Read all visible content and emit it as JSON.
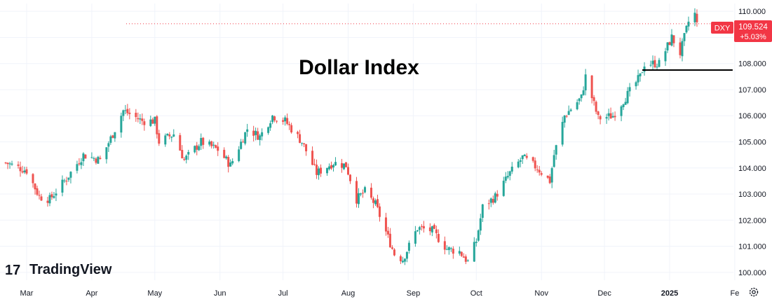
{
  "app": {
    "brand": "TradingView",
    "logo_mark": "17",
    "settings_icon": "gear-icon"
  },
  "chart_data": {
    "type": "candlestick",
    "title": "Dollar Index",
    "symbol": "DXY",
    "last_price": "109.524",
    "change_pct": "+5.03%",
    "price_scale": "right",
    "grid": true,
    "ylim": [
      99.7,
      110.3
    ],
    "y_ticks": [
      "100.000",
      "101.000",
      "102.000",
      "103.000",
      "104.000",
      "105.000",
      "106.000",
      "107.000",
      "108.000",
      "109.000",
      "110.000"
    ],
    "x_labels": [
      {
        "label": "Mar",
        "date": "2024-03-01",
        "bold": false
      },
      {
        "label": "Apr",
        "date": "2024-04-01",
        "bold": false
      },
      {
        "label": "May",
        "date": "2024-05-01",
        "bold": false
      },
      {
        "label": "Jun",
        "date": "2024-06-01",
        "bold": false
      },
      {
        "label": "Jul",
        "date": "2024-07-01",
        "bold": false
      },
      {
        "label": "Aug",
        "date": "2024-08-01",
        "bold": false
      },
      {
        "label": "Sep",
        "date": "2024-09-01",
        "bold": false
      },
      {
        "label": "Oct",
        "date": "2024-10-01",
        "bold": false
      },
      {
        "label": "Nov",
        "date": "2024-11-01",
        "bold": false
      },
      {
        "label": "Dec",
        "date": "2024-12-01",
        "bold": false
      },
      {
        "label": "2025",
        "date": "2025-01-01",
        "bold": true
      },
      {
        "label": "Fe",
        "date": "2025-02-01",
        "bold": false
      }
    ],
    "closes": [
      {
        "date": "2024-02-20",
        "close": 104.2
      },
      {
        "date": "2024-03-01",
        "close": 103.9
      },
      {
        "date": "2024-03-07",
        "close": 102.9
      },
      {
        "date": "2024-03-12",
        "close": 102.8
      },
      {
        "date": "2024-03-20",
        "close": 103.6
      },
      {
        "date": "2024-03-28",
        "close": 104.5
      },
      {
        "date": "2024-04-05",
        "close": 104.3
      },
      {
        "date": "2024-04-11",
        "close": 105.3
      },
      {
        "date": "2024-04-16",
        "close": 106.2
      },
      {
        "date": "2024-04-25",
        "close": 105.8
      },
      {
        "date": "2024-05-01",
        "close": 105.8
      },
      {
        "date": "2024-05-03",
        "close": 105.0
      },
      {
        "date": "2024-05-10",
        "close": 105.3
      },
      {
        "date": "2024-05-15",
        "close": 104.3
      },
      {
        "date": "2024-05-23",
        "close": 105.0
      },
      {
        "date": "2024-05-31",
        "close": 104.7
      },
      {
        "date": "2024-06-06",
        "close": 104.1
      },
      {
        "date": "2024-06-14",
        "close": 105.5
      },
      {
        "date": "2024-06-20",
        "close": 105.2
      },
      {
        "date": "2024-06-26",
        "close": 106.0
      },
      {
        "date": "2024-07-02",
        "close": 105.8
      },
      {
        "date": "2024-07-10",
        "close": 105.0
      },
      {
        "date": "2024-07-17",
        "close": 103.8
      },
      {
        "date": "2024-07-25",
        "close": 104.2
      },
      {
        "date": "2024-07-31",
        "close": 104.1
      },
      {
        "date": "2024-08-05",
        "close": 102.8
      },
      {
        "date": "2024-08-09",
        "close": 103.1
      },
      {
        "date": "2024-08-14",
        "close": 102.6
      },
      {
        "date": "2024-08-23",
        "close": 100.7
      },
      {
        "date": "2024-08-27",
        "close": 100.5
      },
      {
        "date": "2024-09-03",
        "close": 101.7
      },
      {
        "date": "2024-09-10",
        "close": 101.6
      },
      {
        "date": "2024-09-17",
        "close": 100.9
      },
      {
        "date": "2024-09-23",
        "close": 100.8
      },
      {
        "date": "2024-09-27",
        "close": 100.4
      },
      {
        "date": "2024-10-01",
        "close": 101.2
      },
      {
        "date": "2024-10-04",
        "close": 102.5
      },
      {
        "date": "2024-10-10",
        "close": 102.9
      },
      {
        "date": "2024-10-17",
        "close": 103.8
      },
      {
        "date": "2024-10-23",
        "close": 104.4
      },
      {
        "date": "2024-10-30",
        "close": 104.0
      },
      {
        "date": "2024-11-05",
        "close": 103.5
      },
      {
        "date": "2024-11-07",
        "close": 104.5
      },
      {
        "date": "2024-11-12",
        "close": 106.0
      },
      {
        "date": "2024-11-20",
        "close": 106.7
      },
      {
        "date": "2024-11-22",
        "close": 107.5
      },
      {
        "date": "2024-11-28",
        "close": 105.9
      },
      {
        "date": "2024-12-05",
        "close": 106.0
      },
      {
        "date": "2024-12-11",
        "close": 106.7
      },
      {
        "date": "2024-12-18",
        "close": 107.5
      },
      {
        "date": "2024-12-20",
        "close": 108.0
      },
      {
        "date": "2024-12-27",
        "close": 108.0
      },
      {
        "date": "2025-01-02",
        "close": 109.0
      },
      {
        "date": "2025-01-06",
        "close": 108.4
      },
      {
        "date": "2025-01-10",
        "close": 109.6
      },
      {
        "date": "2025-01-13",
        "close": 109.9
      },
      {
        "date": "2025-01-14",
        "close": 109.5
      }
    ],
    "annotations": [
      {
        "type": "horizontal-line",
        "style": "solid",
        "color": "#000000",
        "y": 107.75,
        "from_date": "2024-12-19",
        "to_date": "2025-01-31"
      },
      {
        "type": "price-line",
        "style": "dotted",
        "color": "#f23645",
        "y": 109.524
      }
    ]
  },
  "colors": {
    "up": "#26a69a",
    "down": "#ef5350",
    "grid": "#f0f3fa",
    "axis_text": "#131722",
    "badge_bg": "#f23645",
    "badge_text": "#ffffff"
  }
}
